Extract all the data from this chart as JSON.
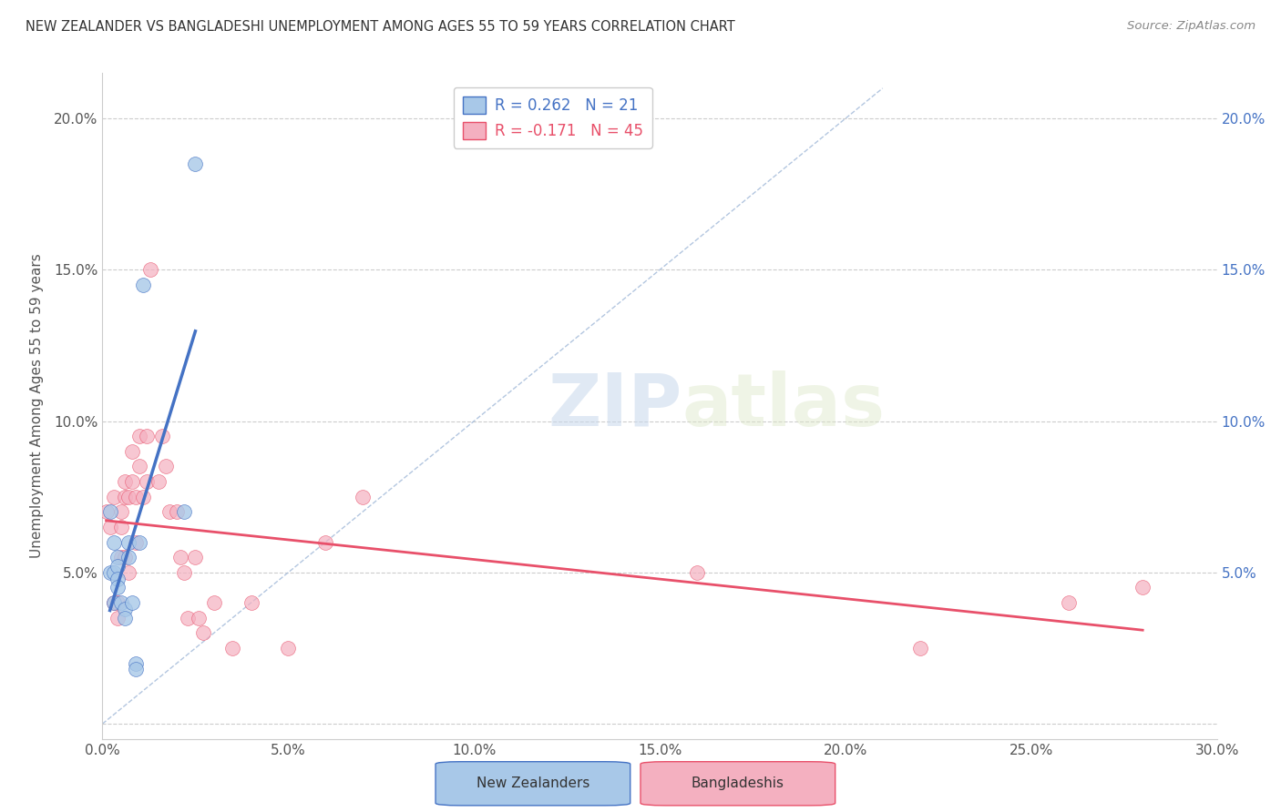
{
  "title": "NEW ZEALANDER VS BANGLADESHI UNEMPLOYMENT AMONG AGES 55 TO 59 YEARS CORRELATION CHART",
  "source": "Source: ZipAtlas.com",
  "ylabel": "Unemployment Among Ages 55 to 59 years",
  "xlim": [
    0.0,
    0.3
  ],
  "ylim": [
    -0.005,
    0.215
  ],
  "xticks": [
    0.0,
    0.05,
    0.1,
    0.15,
    0.2,
    0.25,
    0.3
  ],
  "yticks": [
    0.0,
    0.05,
    0.1,
    0.15,
    0.2
  ],
  "xticklabels": [
    "0.0%",
    "5.0%",
    "10.0%",
    "15.0%",
    "20.0%",
    "25.0%",
    "30.0%"
  ],
  "yticklabels_left": [
    "",
    "5.0%",
    "10.0%",
    "15.0%",
    "20.0%"
  ],
  "yticklabels_right": [
    "",
    "5.0%",
    "10.0%",
    "15.0%",
    "20.0%"
  ],
  "legend_entry1": "R = 0.262   N = 21",
  "legend_entry2": "R = -0.171   N = 45",
  "color_nz": "#a8c8e8",
  "color_bd": "#f4b0c0",
  "color_nz_line": "#4472c4",
  "color_bd_line": "#e8506a",
  "color_diag": "#a0b8d8",
  "nz_x": [
    0.002,
    0.002,
    0.003,
    0.003,
    0.003,
    0.004,
    0.004,
    0.004,
    0.004,
    0.005,
    0.006,
    0.006,
    0.007,
    0.007,
    0.008,
    0.009,
    0.009,
    0.01,
    0.011,
    0.022,
    0.025
  ],
  "nz_y": [
    0.07,
    0.05,
    0.06,
    0.05,
    0.04,
    0.055,
    0.052,
    0.048,
    0.045,
    0.04,
    0.038,
    0.035,
    0.06,
    0.055,
    0.04,
    0.02,
    0.018,
    0.06,
    0.145,
    0.07,
    0.185
  ],
  "bd_x": [
    0.001,
    0.002,
    0.003,
    0.003,
    0.004,
    0.004,
    0.005,
    0.005,
    0.005,
    0.006,
    0.006,
    0.006,
    0.007,
    0.007,
    0.008,
    0.008,
    0.009,
    0.009,
    0.01,
    0.01,
    0.011,
    0.012,
    0.012,
    0.013,
    0.015,
    0.016,
    0.017,
    0.018,
    0.02,
    0.021,
    0.022,
    0.023,
    0.025,
    0.026,
    0.027,
    0.03,
    0.035,
    0.04,
    0.05,
    0.06,
    0.07,
    0.16,
    0.22,
    0.26,
    0.28
  ],
  "bd_y": [
    0.07,
    0.065,
    0.075,
    0.04,
    0.04,
    0.035,
    0.07,
    0.065,
    0.055,
    0.08,
    0.075,
    0.055,
    0.075,
    0.05,
    0.09,
    0.08,
    0.075,
    0.06,
    0.095,
    0.085,
    0.075,
    0.095,
    0.08,
    0.15,
    0.08,
    0.095,
    0.085,
    0.07,
    0.07,
    0.055,
    0.05,
    0.035,
    0.055,
    0.035,
    0.03,
    0.04,
    0.025,
    0.04,
    0.025,
    0.06,
    0.075,
    0.05,
    0.025,
    0.04,
    0.045
  ]
}
